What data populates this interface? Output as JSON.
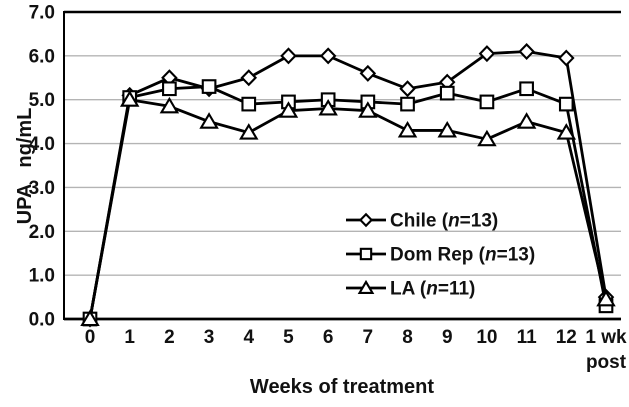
{
  "chart_data": {
    "type": "line",
    "title": "",
    "xlabel": "Weeks of treatment",
    "ylabel": "UPA  ng/mL",
    "ylim": [
      0.0,
      7.0
    ],
    "ytick_step": 1.0,
    "ytick_labels": [
      "0.0",
      "1.0",
      "2.0",
      "3.0",
      "4.0",
      "5.0",
      "6.0",
      "7.0"
    ],
    "categories": [
      "0",
      "1",
      "2",
      "3",
      "4",
      "5",
      "6",
      "7",
      "8",
      "9",
      "10",
      "11",
      "12",
      "1 wk\npost"
    ],
    "grid": "horizontal",
    "gridline_color": "#b4b4b4",
    "axis_color": "#000000",
    "marker_fill": "#ffffff",
    "legend_position": "inside-center-right",
    "series": [
      {
        "name": "Chile",
        "n": 13,
        "label": "Chile (n=13)",
        "label_prefix": "Chile (",
        "label_n": "n",
        "label_suffix": "=13)",
        "marker": "diamond",
        "color": "#000000",
        "values": [
          0.0,
          5.1,
          5.5,
          5.25,
          5.5,
          6.0,
          6.0,
          5.6,
          5.25,
          5.4,
          6.05,
          6.1,
          5.95,
          0.5
        ]
      },
      {
        "name": "Dom Rep",
        "n": 13,
        "label": "Dom Rep (n=13)",
        "label_prefix": "Dom Rep (",
        "label_n": "n",
        "label_suffix": "=13)",
        "marker": "square",
        "color": "#000000",
        "values": [
          0.0,
          5.05,
          5.25,
          5.3,
          4.9,
          4.95,
          5.0,
          4.95,
          4.9,
          5.15,
          4.95,
          5.25,
          4.9,
          0.3
        ]
      },
      {
        "name": "LA",
        "n": 11,
        "label": "LA (n=11)",
        "label_prefix": "LA (",
        "label_n": "n",
        "label_suffix": "=11)",
        "marker": "triangle",
        "color": "#000000",
        "values": [
          0.0,
          5.0,
          4.85,
          4.5,
          4.25,
          4.75,
          4.8,
          4.75,
          4.3,
          4.3,
          4.1,
          4.5,
          4.25,
          0.45
        ]
      }
    ]
  }
}
